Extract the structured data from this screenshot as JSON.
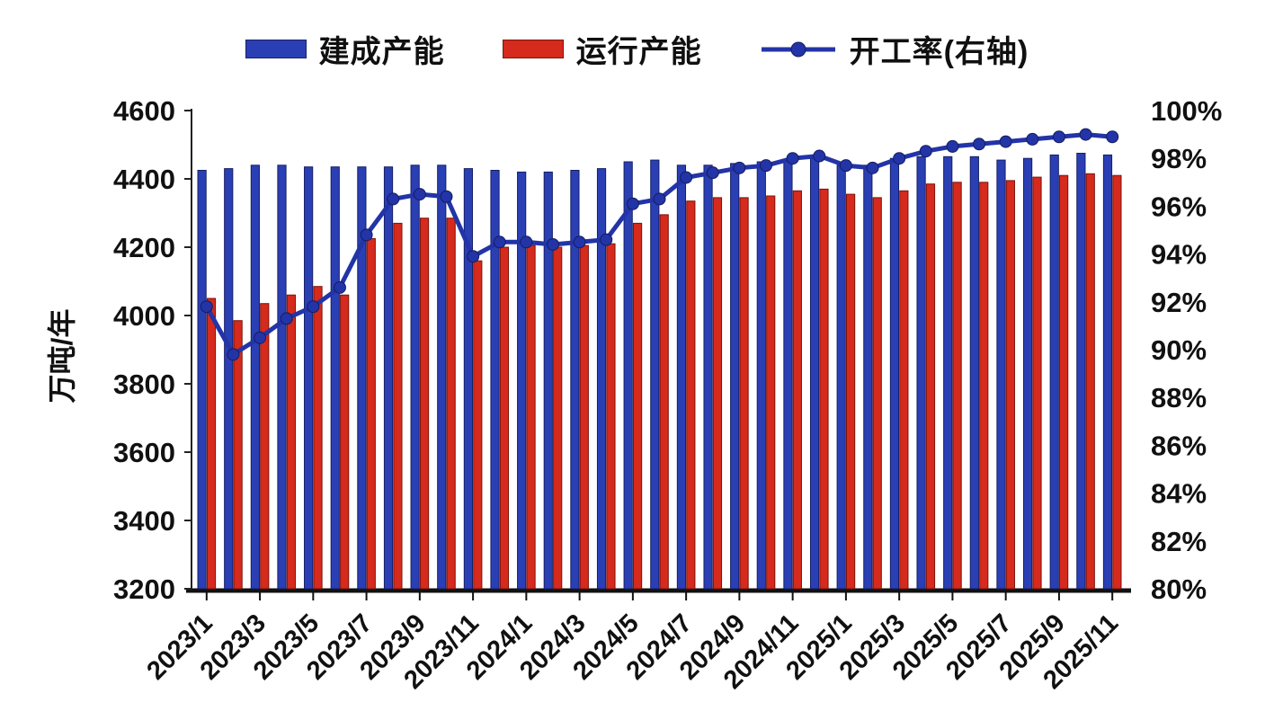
{
  "page": {
    "background": "#ffffff"
  },
  "legend": [
    {
      "label": "建成产能",
      "type": "bar",
      "color": "#2b3fb4"
    },
    {
      "label": "运行产能",
      "type": "bar",
      "color": "#d52a1c"
    },
    {
      "label": "开工率(右轴)",
      "type": "line",
      "color": "#2334a8"
    }
  ],
  "chart_data": {
    "type": "bar+line",
    "title": "",
    "legend_position": "top",
    "grid": false,
    "left_axis": {
      "title": "万吨/年",
      "min": 3200,
      "max": 4600,
      "ticks": [
        4600,
        4400,
        4200,
        4000,
        3800,
        3600,
        3400,
        3200
      ]
    },
    "right_axis": {
      "title": "",
      "min": 80,
      "max": 100,
      "unit": "%",
      "ticks": [
        100,
        98,
        96,
        94,
        92,
        90,
        88,
        86,
        84,
        82,
        80
      ]
    },
    "x_tick_labels": [
      "2023/1",
      "2023/3",
      "2023/5",
      "2023/7",
      "2023/9",
      "2023/11",
      "2024/1",
      "2024/3",
      "2024/5",
      "2024/7",
      "2024/9",
      "2024/11",
      "2025/1",
      "2025/3",
      "2025/5",
      "2025/7",
      "2025/9",
      "2025/11"
    ],
    "categories": [
      "2023/1",
      "2023/2",
      "2023/3",
      "2023/4",
      "2023/5",
      "2023/6",
      "2023/7",
      "2023/8",
      "2023/9",
      "2023/10",
      "2023/11",
      "2023/12",
      "2024/1",
      "2024/2",
      "2024/3",
      "2024/4",
      "2024/5",
      "2024/6",
      "2024/7",
      "2024/8",
      "2024/9",
      "2024/10",
      "2024/11",
      "2024/12",
      "2025/1",
      "2025/2",
      "2025/3",
      "2025/4",
      "2025/5",
      "2025/6",
      "2025/7",
      "2025/8",
      "2025/9",
      "2025/10",
      "2025/11"
    ],
    "series": [
      {
        "name": "建成产能",
        "type": "bar",
        "axis": "left",
        "color": "#2b3fb4",
        "edge_color": "#141f66",
        "values": [
          4425,
          4430,
          4440,
          4440,
          4435,
          4435,
          4435,
          4435,
          4440,
          4440,
          4430,
          4425,
          4420,
          4420,
          4425,
          4430,
          4450,
          4455,
          4440,
          4440,
          4445,
          4450,
          4455,
          4460,
          4440,
          4440,
          4460,
          4465,
          4465,
          4465,
          4455,
          4460,
          4470,
          4475,
          4470
        ]
      },
      {
        "name": "运行产能",
        "type": "bar",
        "axis": "left",
        "color": "#d52a1c",
        "edge_color": "#7c130b",
        "values": [
          4050,
          3985,
          4035,
          4060,
          4085,
          4060,
          4225,
          4270,
          4285,
          4285,
          4160,
          4200,
          4205,
          4200,
          4205,
          4210,
          4270,
          4295,
          4335,
          4345,
          4345,
          4350,
          4365,
          4370,
          4355,
          4345,
          4365,
          4385,
          4390,
          4390,
          4395,
          4405,
          4410,
          4415,
          4410
        ]
      },
      {
        "name": "开工率(右轴)",
        "type": "line",
        "axis": "right",
        "color": "#2334a8",
        "marker_edge_color": "#131d5e",
        "values": [
          91.8,
          89.8,
          90.5,
          91.3,
          91.8,
          92.6,
          94.8,
          96.3,
          96.5,
          96.4,
          93.9,
          94.5,
          94.5,
          94.4,
          94.5,
          94.6,
          96.1,
          96.3,
          97.2,
          97.4,
          97.6,
          97.7,
          98.0,
          98.1,
          97.7,
          97.6,
          98.0,
          98.3,
          98.5,
          98.6,
          98.7,
          98.8,
          98.9,
          99.0,
          98.9
        ]
      }
    ]
  }
}
